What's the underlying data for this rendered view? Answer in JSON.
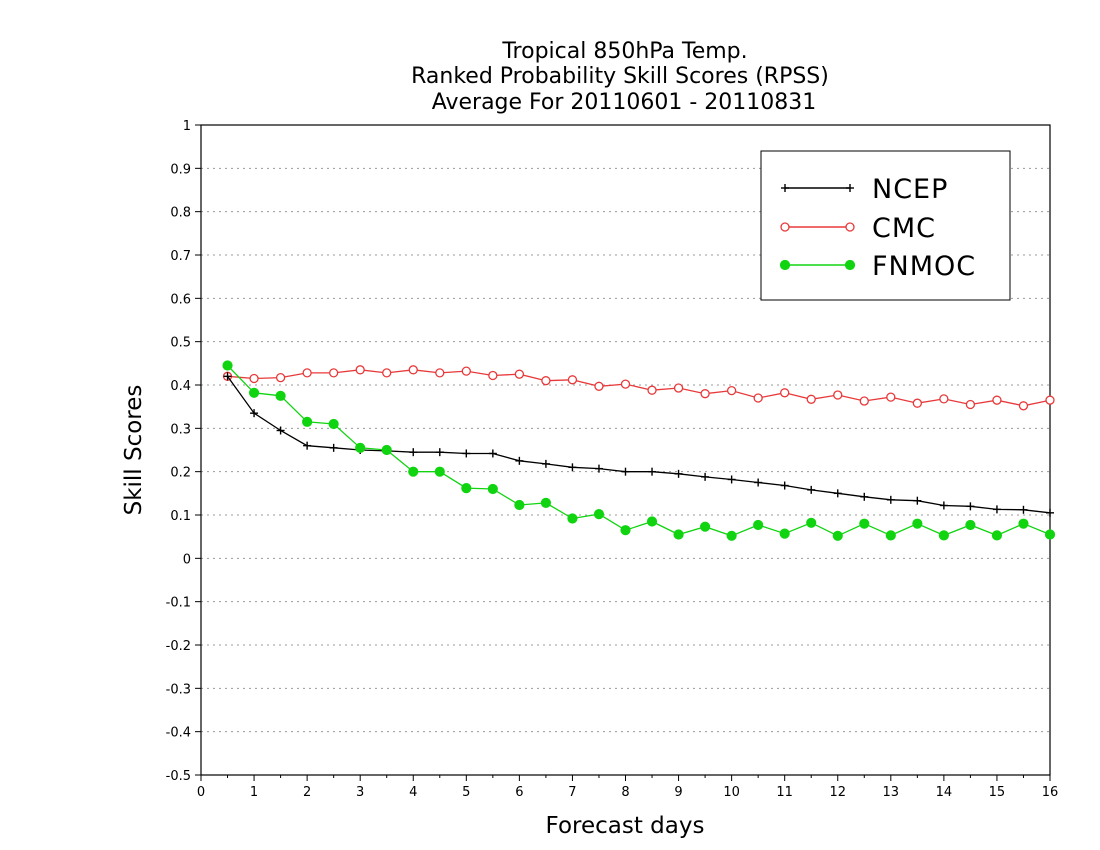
{
  "chart_data": {
    "type": "line",
    "title": [
      "Tropical 850hPa Temp.",
      "Ranked Probability Skill Scores (RPSS)",
      "Average For 20110601 - 20110831"
    ],
    "xlabel": "Forecast days",
    "ylabel": "Skill Scores",
    "xlim": [
      0,
      16
    ],
    "ylim": [
      -0.5,
      1
    ],
    "xticks": [
      "0",
      "1",
      "2",
      "3",
      "4",
      "5",
      "6",
      "7",
      "8",
      "9",
      "10",
      "11",
      "12",
      "13",
      "14",
      "15",
      "16"
    ],
    "yticks": [
      "1",
      "0.9",
      "0.8",
      "0.7",
      "0.6",
      "0.5",
      "0.4",
      "0.3",
      "0.2",
      "0.1",
      "0",
      "-0.1",
      "-0.2",
      "-0.3",
      "-0.4",
      "-0.5"
    ],
    "grid": true,
    "legend_position": "top-right",
    "x": [
      0.5,
      1,
      1.5,
      2,
      2.5,
      3,
      3.5,
      4,
      4.5,
      5,
      5.5,
      6,
      6.5,
      7,
      7.5,
      8,
      8.5,
      9,
      9.5,
      10,
      10.5,
      11,
      11.5,
      12,
      12.5,
      13,
      13.5,
      14,
      14.5,
      15,
      15.5,
      16
    ],
    "series": [
      {
        "name": "NCEP",
        "color": "#000000",
        "marker": "plus",
        "values": [
          0.42,
          0.335,
          0.295,
          0.26,
          0.255,
          0.25,
          0.248,
          0.245,
          0.245,
          0.242,
          0.242,
          0.225,
          0.218,
          0.21,
          0.207,
          0.2,
          0.2,
          0.195,
          0.188,
          0.182,
          0.175,
          0.168,
          0.158,
          0.15,
          0.142,
          0.135,
          0.133,
          0.122,
          0.12,
          0.113,
          0.112,
          0.105
        ]
      },
      {
        "name": "CMC",
        "color": "#e8393a",
        "marker": "open-circle",
        "values": [
          0.42,
          0.415,
          0.417,
          0.428,
          0.428,
          0.435,
          0.428,
          0.435,
          0.428,
          0.432,
          0.422,
          0.425,
          0.41,
          0.412,
          0.397,
          0.402,
          0.388,
          0.393,
          0.38,
          0.387,
          0.37,
          0.382,
          0.367,
          0.377,
          0.363,
          0.372,
          0.358,
          0.368,
          0.355,
          0.365,
          0.352,
          0.365
        ]
      },
      {
        "name": "FNMOC",
        "color": "#11d411",
        "marker": "filled-circle",
        "values": [
          0.445,
          0.382,
          0.375,
          0.315,
          0.31,
          0.255,
          0.25,
          0.2,
          0.2,
          0.162,
          0.16,
          0.123,
          0.128,
          0.092,
          0.102,
          0.065,
          0.085,
          0.055,
          0.073,
          0.052,
          0.077,
          0.057,
          0.082,
          0.052,
          0.08,
          0.053,
          0.08,
          0.053,
          0.077,
          0.053,
          0.08,
          0.055
        ]
      }
    ]
  }
}
